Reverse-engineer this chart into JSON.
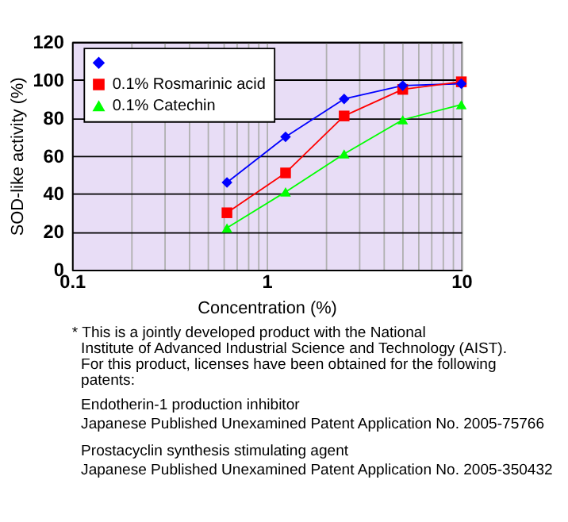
{
  "chart_data": {
    "type": "line",
    "xlabel": "Concentration (%)",
    "ylabel": "SOD-like activity (%)",
    "log": "x",
    "grid": true,
    "legend": "top left",
    "line_style": "solid",
    "xlim": [
      0.1,
      10
    ],
    "xticks": [
      0.1,
      {
        "value": 0.2,
        "label": null
      },
      {
        "value": 0.3,
        "label": null
      },
      {
        "value": 0.4,
        "label": null
      },
      {
        "value": 0.5,
        "label": null
      },
      {
        "value": 0.6,
        "label": null
      },
      {
        "value": 0.7,
        "label": null
      },
      {
        "value": 0.8,
        "label": null
      },
      {
        "value": 0.9,
        "label": null
      },
      1,
      {
        "value": 2,
        "label": null
      },
      {
        "value": 3,
        "label": null
      },
      {
        "value": 4,
        "label": null
      },
      {
        "value": 5,
        "label": null
      },
      {
        "value": 6,
        "label": null
      },
      {
        "value": 7,
        "label": null
      },
      {
        "value": 8,
        "label": null
      },
      {
        "value": 9,
        "label": null
      },
      10
    ],
    "ylim": [
      0,
      120
    ],
    "yticks": [
      0,
      20,
      40,
      60,
      80,
      100,
      120
    ],
    "x": [
      0.625,
      1.25,
      2.5,
      5,
      10
    ],
    "series": [
      {
        "color": "#0000ff",
        "marker": "diamond",
        "values": [
          46,
          70,
          90,
          97,
          98
        ]
      },
      {
        "name": "0.1% Rosmarinic acid",
        "color": "#ff0000",
        "marker": "square",
        "values": [
          30,
          51,
          81,
          95,
          99
        ]
      },
      {
        "name": "0.1% Catechin",
        "color": "#00ff00",
        "marker": "triangle",
        "values": [
          22,
          41,
          61,
          79,
          87
        ]
      }
    ],
    "annotations": [
      "* This is a jointly developed product with the National Institute of Advanced Industrial Science and Technology (AIST). For this product, licenses have been obtained for the following patents:",
      "Endotherin-1 production inhibitor",
      "Japanese Published Unexamined Patent Application No. 2005-75766",
      "Prostacyclin synthesis stimulating agent",
      "Japanese Published Unexamined Patent Application No. 2005-350432"
    ]
  }
}
